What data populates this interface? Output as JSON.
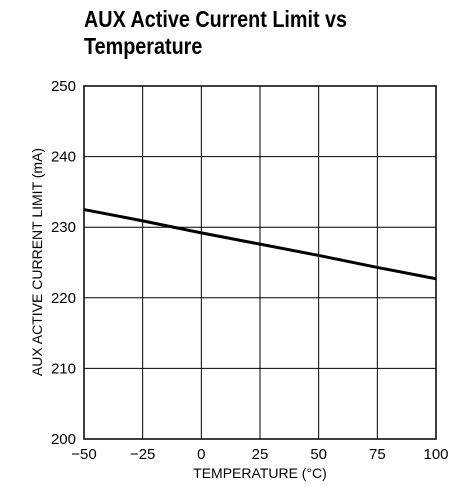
{
  "chart_data": {
    "type": "line",
    "title": "AUX Active Current Limit vs Temperature",
    "xlabel": "TEMPERATURE (°C)",
    "ylabel": "AUX ACTIVE CURRENT LIMIT (mA)",
    "xlim": [
      -50,
      100
    ],
    "ylim": [
      200,
      250
    ],
    "x_ticks": [
      -50,
      -25,
      0,
      25,
      50,
      75,
      100
    ],
    "x_tick_labels": [
      "−50",
      "−25",
      "0",
      "25",
      "50",
      "75",
      "100"
    ],
    "y_ticks": [
      200,
      210,
      220,
      230,
      240,
      250
    ],
    "y_tick_labels": [
      "200",
      "210",
      "220",
      "230",
      "240",
      "250"
    ],
    "grid": true,
    "series": [
      {
        "x": [
          -50,
          -25,
          0,
          25,
          50,
          75,
          100
        ],
        "y": [
          232.5,
          230.9,
          229.2,
          227.6,
          226.0,
          224.3,
          222.7
        ]
      }
    ]
  },
  "colors": {
    "line": "#000000",
    "grid": "#000000",
    "background": "#ffffff"
  }
}
